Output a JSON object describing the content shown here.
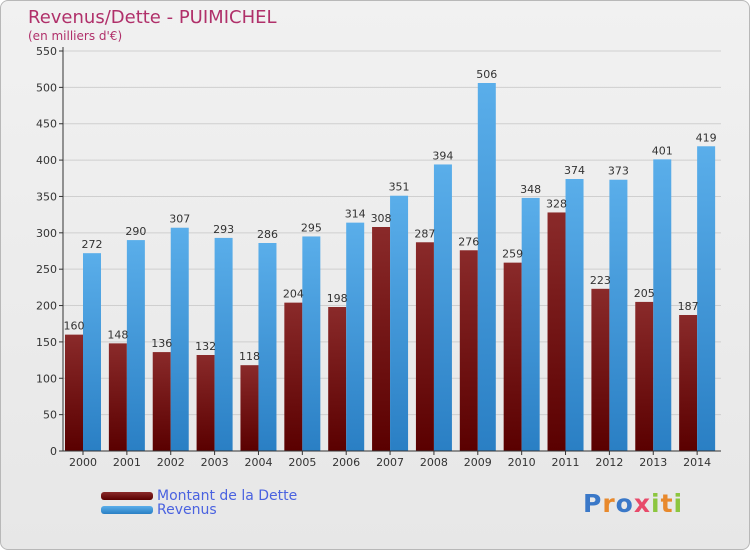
{
  "chart": {
    "title": "Revenus/Dette - PUIMICHEL",
    "subtitle": "(en milliers d'€)"
  },
  "legend": [
    {
      "label": "Montant de la Dette",
      "color": "#7a1414"
    },
    {
      "label": "Revenus",
      "color": "#4a9fe0"
    }
  ],
  "logo": {
    "text": "Proxiti",
    "colors": [
      "#3a78c8",
      "#e8892c",
      "#3a78c8",
      "#e84a6a",
      "#8cc63f",
      "#e8892c",
      "#8cc63f"
    ]
  },
  "colors": {
    "axis": "#333333",
    "grid": "#cfcfcf",
    "label": "#333333"
  },
  "chart_data": {
    "type": "bar",
    "title": "Revenus/Dette - PUIMICHEL",
    "ylabel": "(en milliers d'€)",
    "xlabel": "",
    "ylim": [
      0,
      550
    ],
    "yticks": [
      0,
      50,
      100,
      150,
      200,
      250,
      300,
      350,
      400,
      450,
      500,
      550
    ],
    "grid": true,
    "categories": [
      "2000",
      "2001",
      "2002",
      "2003",
      "2004",
      "2005",
      "2006",
      "2007",
      "2008",
      "2009",
      "2010",
      "2011",
      "2012",
      "2013",
      "2014"
    ],
    "series": [
      {
        "name": "Montant de la Dette",
        "color": "#7a1414",
        "values": [
          160,
          148,
          136,
          132,
          118,
          204,
          198,
          308,
          287,
          276,
          259,
          328,
          223,
          205,
          187
        ]
      },
      {
        "name": "Revenus",
        "color": "#4a9fe0",
        "values": [
          272,
          290,
          307,
          293,
          286,
          295,
          314,
          351,
          394,
          506,
          348,
          374,
          373,
          401,
          419
        ]
      }
    ]
  }
}
